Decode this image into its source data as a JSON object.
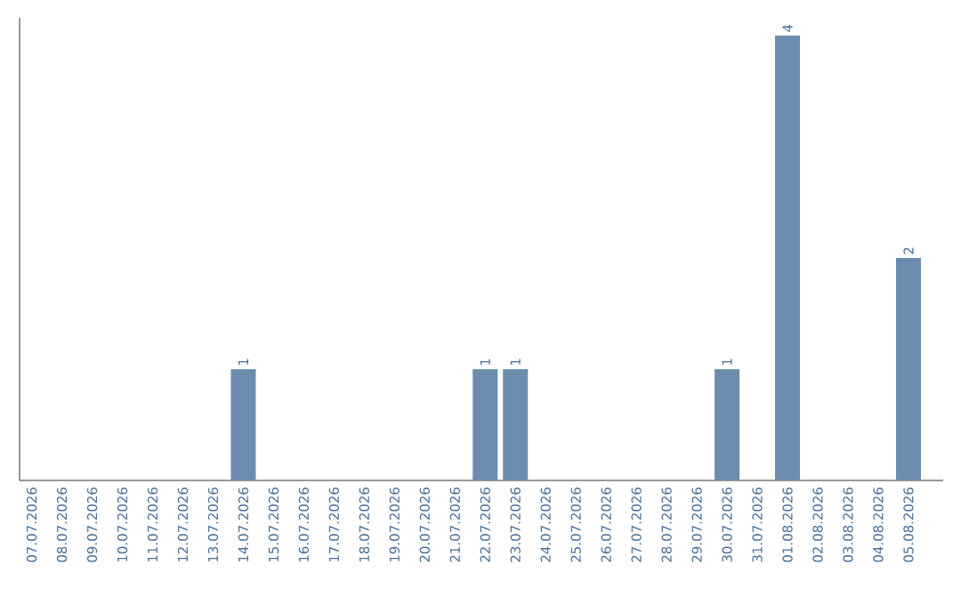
{
  "chart_data": {
    "type": "bar",
    "color": "#6b8cad",
    "categories": [
      "07.07.2026",
      "08.07.2026",
      "09.07.2026",
      "10.07.2026",
      "11.07.2026",
      "12.07.2026",
      "13.07.2026",
      "14.07.2026",
      "15.07.2026",
      "16.07.2026",
      "17.07.2026",
      "18.07.2026",
      "19.07.2026",
      "20.07.2026",
      "21.07.2026",
      "22.07.2026",
      "23.07.2026",
      "24.07.2026",
      "25.07.2026",
      "26.07.2026",
      "27.07.2026",
      "28.07.2026",
      "29.07.2026",
      "30.07.2026",
      "31.07.2026",
      "01.08.2026",
      "02.08.2026",
      "03.08.2026",
      "04.08.2026",
      "05.08.2026"
    ],
    "values": [
      0,
      0,
      0,
      0,
      0,
      0,
      0,
      1,
      0,
      0,
      0,
      0,
      0,
      0,
      0,
      1,
      1,
      0,
      0,
      0,
      0,
      0,
      0,
      1,
      0,
      4,
      0,
      0,
      0,
      2
    ],
    "value_labels": [
      null,
      null,
      null,
      null,
      null,
      null,
      null,
      "1",
      null,
      null,
      null,
      null,
      null,
      null,
      null,
      "1",
      "1",
      null,
      null,
      null,
      null,
      null,
      null,
      "1",
      null,
      "4",
      null,
      null,
      null,
      "2"
    ],
    "tick_labels": "x",
    "grid": false
  }
}
